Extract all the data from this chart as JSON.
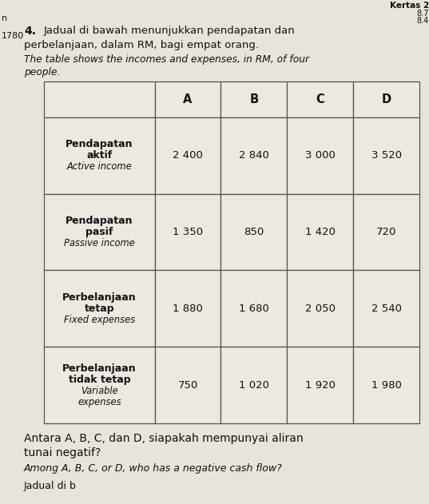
{
  "col_headers": [
    "A",
    "B",
    "C",
    "D"
  ],
  "row_headers": [
    [
      "Pendapatan",
      "aktif",
      "Active income"
    ],
    [
      "Pendapatan",
      "pasif",
      "Passive income"
    ],
    [
      "Perbelanjaan",
      "tetap",
      "Fixed expenses"
    ],
    [
      "Perbelanjaan",
      "tidak tetap",
      "Variable",
      "expenses"
    ]
  ],
  "data": [
    [
      "2 400",
      "2 840",
      "3 000",
      "3 520"
    ],
    [
      "1 350",
      "850",
      "1 420",
      "720"
    ],
    [
      "1 880",
      "1 680",
      "2 050",
      "2 540"
    ],
    [
      "750",
      "1 020",
      "1 920",
      "1 980"
    ]
  ],
  "title_bm_line1": "Jadual di bawah menunjukkan pendapatan dan",
  "title_bm_line2": "perbelanjaan, dalam RM, bagi empat orang.",
  "title_en_line1": "The table shows the incomes and expenses, in RM, of four",
  "title_en_line2": "people.",
  "footer_bm_line1": "Antara A, B, C, dan D, siapakah mempunyai aliran",
  "footer_bm_line2": "tunai negatif?",
  "footer_en": "Among A, B, C, or D, who has a negative cash flow?",
  "footer_last": "Jadual di b",
  "kertas": "Kertas 2",
  "num1": "8.7",
  "num2": "8.4",
  "qnum": "4.",
  "side_n": "n",
  "side_1780": "1780",
  "bg_color": "#e8e4dc",
  "table_bg": "#ede9e0",
  "border_color": "#555555",
  "text_color": "#111111"
}
